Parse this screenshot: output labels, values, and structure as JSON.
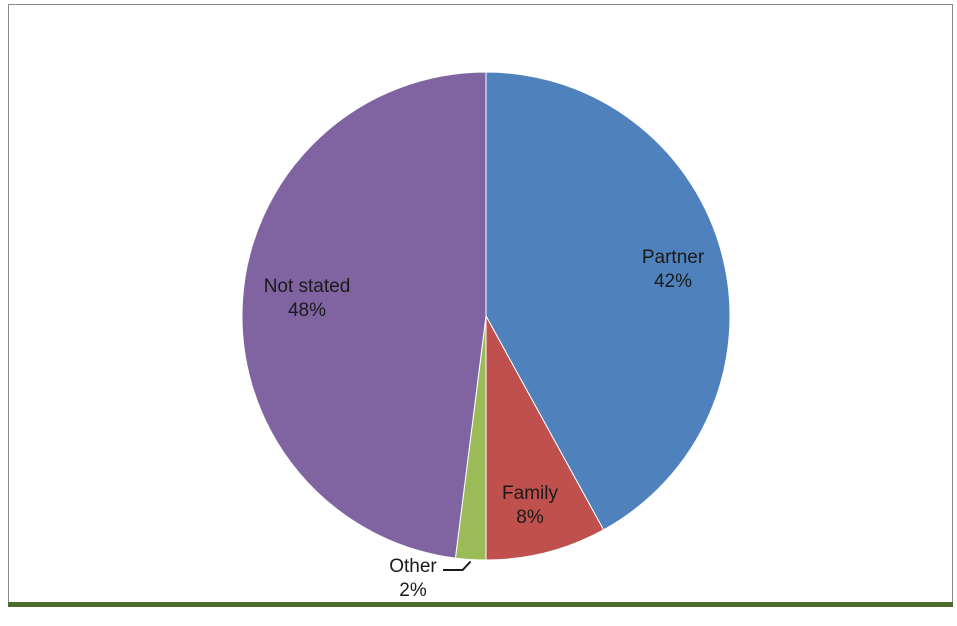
{
  "chart_data": {
    "type": "pie",
    "title": "",
    "slices": [
      {
        "label": "Partner",
        "value": 42,
        "value_label": "42%",
        "color": "#4f81bd"
      },
      {
        "label": "Family",
        "value": 8,
        "value_label": "8%",
        "color": "#c0504d"
      },
      {
        "label": "Other",
        "value": 2,
        "value_label": "2%",
        "color": "#9bbb59"
      },
      {
        "label": "Not stated",
        "value": 48,
        "value_label": "48%",
        "color": "#8064a2"
      }
    ],
    "start_angle_deg": 0,
    "direction": "clockwise",
    "legend": "none"
  }
}
